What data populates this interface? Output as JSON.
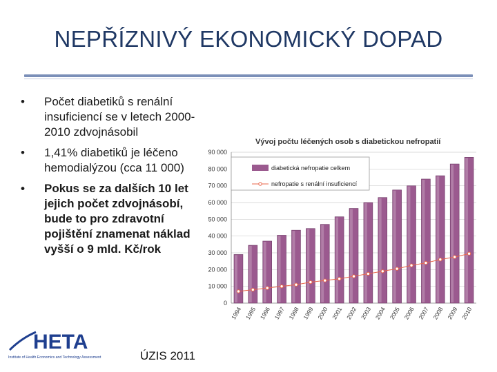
{
  "slide": {
    "title": "NEPŘÍZNIVÝ EKONOMICKÝ DOPAD",
    "bullets": [
      "Počet diabetiků s renální insuficiencí se v letech 2000-2010 zdvojnásobil",
      "1,41% diabetiků je léčeno hemodialýzou (cca 11 000)",
      "Pokus se za dalších 10 let jejich počet zdvojnásobí, bude to pro zdravotní pojištění znamenat náklad vyšší o 9 mld. Kč/rok"
    ],
    "source": "ÚZIS 2011"
  },
  "logo": {
    "name": "HETA",
    "subtitle": "Institute of Health Economics and Technology Assessment"
  },
  "colors": {
    "title": "#1f3864",
    "bar": "#9b5a8f",
    "line": "#e8654a"
  },
  "chart_data": {
    "type": "bar",
    "title": "Vývoj počtu léčených osob s diabetickou nefropatií",
    "categories": [
      "1994",
      "1995",
      "1996",
      "1997",
      "1998",
      "1999",
      "2000",
      "2001",
      "2002",
      "2003",
      "2004",
      "2005",
      "2006",
      "2007",
      "2008",
      "2009",
      "2010"
    ],
    "series": [
      {
        "name": "diabetická nefropatie celkem",
        "kind": "bar",
        "values": [
          29000,
          34500,
          37000,
          40500,
          43500,
          44500,
          47000,
          51500,
          56500,
          60000,
          63000,
          67500,
          70000,
          74000,
          76000,
          83000,
          87000
        ]
      },
      {
        "name": "nefropatie s renální insuficiencí",
        "kind": "line",
        "values": [
          7000,
          8000,
          9000,
          10000,
          11000,
          12500,
          13500,
          14500,
          16000,
          17500,
          19000,
          20500,
          22500,
          24000,
          26000,
          27500,
          29500
        ]
      }
    ],
    "ylim": [
      0,
      90000
    ],
    "yticks": [
      0,
      10000,
      20000,
      30000,
      40000,
      50000,
      60000,
      70000,
      80000,
      90000
    ],
    "ytick_labels": [
      "0",
      "10 000",
      "20 000",
      "30 000",
      "40 000",
      "50 000",
      "60 000",
      "70 000",
      "80 000",
      "90 000"
    ],
    "legend_position": "top-left"
  }
}
